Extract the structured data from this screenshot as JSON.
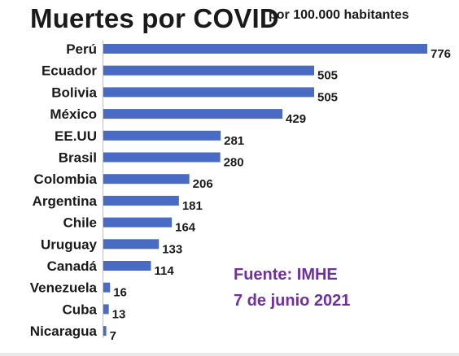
{
  "header": {
    "title": "Muertes por COVID",
    "subtitle": "por 100.000 habitantes"
  },
  "source": {
    "line1": "Fuente: IMHE",
    "line2": "7 de junio 2021"
  },
  "colors": {
    "bar": "#4a6bc4",
    "source_text": "#7030a0",
    "text": "#1a1a1a"
  },
  "chart_data": {
    "type": "bar",
    "orientation": "horizontal",
    "title": "Muertes por COVID",
    "subtitle": "por 100.000 habitantes",
    "categories": [
      "Perú",
      "Ecuador",
      "Bolivia",
      "México",
      "EE.UU",
      "Brasil",
      "Colombia",
      "Argentina",
      "Chile",
      "Uruguay",
      "Canadá",
      "Venezuela",
      "Cuba",
      "Nicaragua"
    ],
    "values": [
      776,
      505,
      505,
      429,
      281,
      280,
      206,
      181,
      164,
      133,
      114,
      16,
      13,
      7
    ],
    "data_labels": true,
    "grid": false,
    "legend": "none",
    "xlim": [
      0,
      776
    ]
  }
}
